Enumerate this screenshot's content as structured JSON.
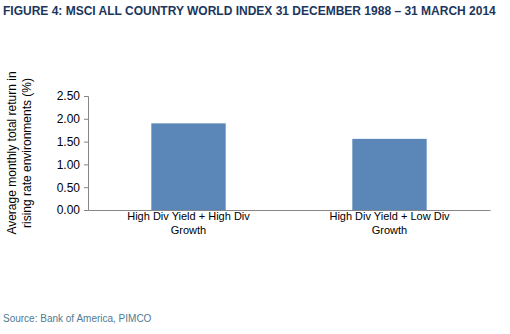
{
  "chart_data": {
    "type": "bar",
    "title": "FIGURE 4: MSCI ALL COUNTRY WORLD INDEX 31 DECEMBER 1988 – 31 MARCH 2014",
    "ylabel": "Average monthly total return in rising rate environments (%)",
    "source": "Source: Bank of America, PIMCO",
    "categories": [
      "High Div Yield + High Div Growth",
      "High Div Yield + Low Div Growth"
    ],
    "values": [
      1.9,
      1.56
    ],
    "color": "#5a87b8",
    "ylim": [
      0,
      2.5
    ],
    "yticks": [
      {
        "value": 0,
        "label": "0.00"
      },
      {
        "value": 0.5,
        "label": "0.50"
      },
      {
        "value": 1,
        "label": "1.00"
      },
      {
        "value": 1.5,
        "label": "1.50"
      },
      {
        "value": 2,
        "label": "2.00"
      },
      {
        "value": 2.5,
        "label": "2.50"
      }
    ],
    "grid": false
  }
}
